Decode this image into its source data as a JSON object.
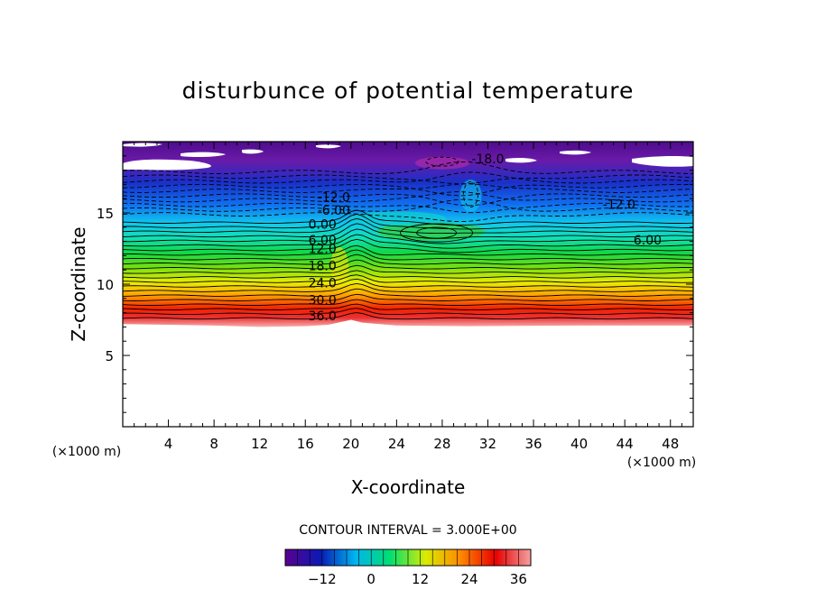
{
  "chart_data": {
    "type": "contour",
    "title": "disturbunce of potential temperature",
    "xlabel": "X-coordinate",
    "ylabel": "Z-coordinate",
    "x_unit": "(×1000 m)",
    "y_unit": "(×1000 m)",
    "xlim": [
      0,
      50
    ],
    "ylim": [
      0,
      20
    ],
    "x_ticks": [
      4,
      8,
      12,
      16,
      20,
      24,
      28,
      32,
      36,
      40,
      44,
      48
    ],
    "y_ticks": [
      5,
      10,
      15
    ],
    "contour_interval_text": "CONTOUR INTERVAL = 3.000E+00",
    "contour_interval": 3,
    "negative_contours": "dashed",
    "contour_labels": [
      {
        "text": "-18.0",
        "x": 32,
        "z": 18.8
      },
      {
        "text": "-12.0",
        "x": 18.5,
        "z": 16.1
      },
      {
        "text": "-6.00",
        "x": 18.5,
        "z": 15.2
      },
      {
        "text": "-12.0",
        "x": 43.5,
        "z": 15.6
      },
      {
        "text": "0.00",
        "x": 17.5,
        "z": 14.2
      },
      {
        "text": "6.00",
        "x": 17.5,
        "z": 13.1
      },
      {
        "text": "6.00",
        "x": 46,
        "z": 13.1
      },
      {
        "text": "12.0",
        "x": 17.5,
        "z": 12.5
      },
      {
        "text": "18.0",
        "x": 17.5,
        "z": 11.3
      },
      {
        "text": "24.0",
        "x": 17.5,
        "z": 10.1
      },
      {
        "text": "30.0",
        "x": 17.5,
        "z": 8.9
      },
      {
        "text": "36.0",
        "x": 17.5,
        "z": 7.8
      }
    ],
    "colorbar": {
      "min": -21,
      "max": 39,
      "ticks": [
        -12,
        0,
        12,
        24,
        36
      ],
      "colors": [
        "#5a0090",
        "#0a1ab4",
        "#00b4f0",
        "#00e070",
        "#d8ec00",
        "#ff8800",
        "#e80000",
        "#f4a0a0"
      ]
    }
  }
}
